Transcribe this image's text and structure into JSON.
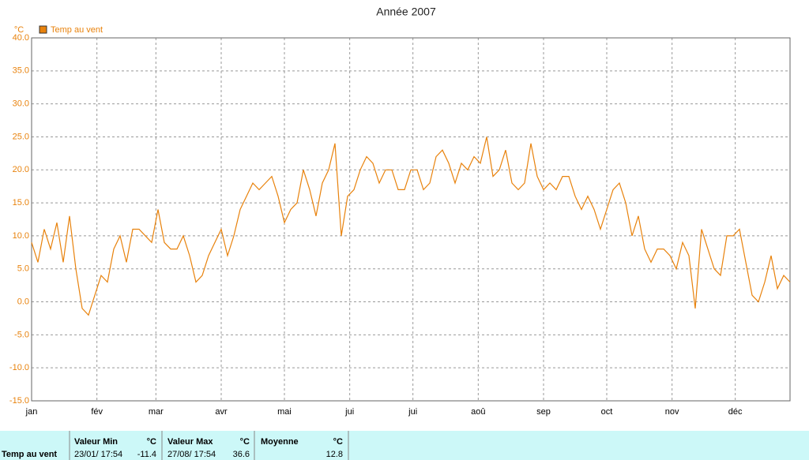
{
  "chart_data": {
    "type": "line",
    "title": "Année 2007",
    "y_label": "°C",
    "xlim": [
      0,
      360
    ],
    "xticks": [
      {
        "value": 0,
        "label": "jan"
      },
      {
        "value": 31,
        "label": "fév"
      },
      {
        "value": 59,
        "label": "mar"
      },
      {
        "value": 90,
        "label": "avr"
      },
      {
        "value": 120,
        "label": "mai"
      },
      {
        "value": 151,
        "label": "jui"
      },
      {
        "value": 181,
        "label": "jui"
      },
      {
        "value": 212,
        "label": "aoû"
      },
      {
        "value": 243,
        "label": "sep"
      },
      {
        "value": 273,
        "label": "oct"
      },
      {
        "value": 304,
        "label": "nov"
      },
      {
        "value": 334,
        "label": "déc"
      }
    ],
    "ylim": [
      -15,
      40
    ],
    "yticks": [
      {
        "value": -15,
        "label": "-15.0"
      },
      {
        "value": -10,
        "label": "-10.0"
      },
      {
        "value": -5,
        "label": "-5.0"
      },
      {
        "value": 0,
        "label": "0.0"
      },
      {
        "value": 5,
        "label": "5.0"
      },
      {
        "value": 10,
        "label": "10.0"
      },
      {
        "value": 15,
        "label": "15.0"
      },
      {
        "value": 20,
        "label": "20.0"
      },
      {
        "value": 25,
        "label": "25.0"
      },
      {
        "value": 30,
        "label": "30.0"
      },
      {
        "value": 35,
        "label": "35.0"
      },
      {
        "value": 40,
        "label": "40.0"
      }
    ],
    "grid": true,
    "series": [
      {
        "name": "Temp au vent",
        "color": "#e8820c",
        "values": [
          9,
          6,
          11,
          8,
          12,
          6,
          13,
          5,
          -1,
          -2,
          1,
          4,
          3,
          8,
          10,
          6,
          11,
          11,
          10,
          9,
          14,
          9,
          8,
          8,
          10,
          7,
          3,
          4,
          7,
          9,
          11,
          7,
          10,
          14,
          16,
          18,
          17,
          18,
          19,
          16,
          12,
          14,
          15,
          20,
          17,
          13,
          18,
          20,
          24,
          10,
          16,
          17,
          20,
          22,
          21,
          18,
          20,
          20,
          17,
          17,
          20,
          20,
          17,
          18,
          22,
          23,
          21,
          18,
          21,
          20,
          22,
          21,
          25,
          19,
          20,
          23,
          18,
          17,
          18,
          24,
          19,
          17,
          18,
          17,
          19,
          19,
          16,
          14,
          16,
          14,
          11,
          14,
          17,
          18,
          15,
          10,
          13,
          8,
          6,
          8,
          8,
          7,
          5,
          9,
          7,
          -1,
          11,
          8,
          5,
          4,
          10,
          10,
          11,
          6,
          1,
          0,
          3,
          7,
          2,
          4,
          3
        ]
      }
    ]
  },
  "stats": {
    "row_label": "Temp au vent",
    "headers": [
      "Valeur Min",
      "°C",
      "Valeur Max",
      "°C",
      "Moyenne",
      "°C"
    ],
    "cells": [
      "23/01/ 17:54",
      "-11.4",
      "27/08/ 17:54",
      "36.6",
      "",
      "12.8"
    ]
  }
}
